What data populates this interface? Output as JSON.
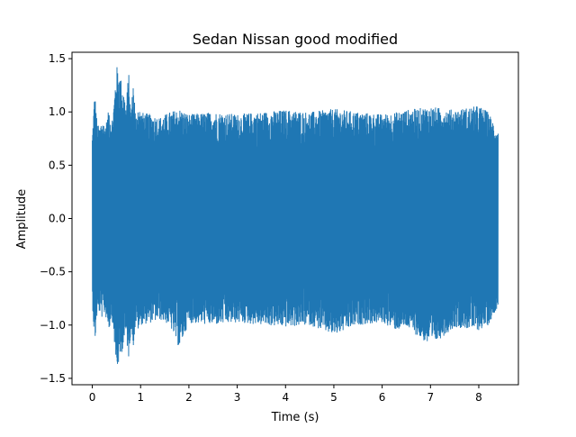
{
  "chart_data": {
    "type": "line",
    "title": "Sedan Nissan good modified",
    "xlabel": "Time (s)",
    "ylabel": "Amplitude",
    "xlim": [
      -0.42,
      8.82
    ],
    "ylim": [
      -1.56,
      1.56
    ],
    "xticks": [
      0,
      1,
      2,
      3,
      4,
      5,
      6,
      7,
      8
    ],
    "yticks": [
      -1.5,
      -1.0,
      -0.5,
      0.0,
      0.5,
      1.0,
      1.5
    ],
    "xtick_labels": [
      "0",
      "1",
      "2",
      "3",
      "4",
      "5",
      "6",
      "7",
      "8"
    ],
    "ytick_labels": [
      "−1.5",
      "−1.0",
      "−0.5",
      "0.0",
      "0.5",
      "1.0",
      "1.5"
    ],
    "grid": false,
    "line_color": "#1f77b4",
    "series": [
      {
        "x": [
          0.0,
          0.05,
          0.1,
          0.15,
          0.2,
          0.25,
          0.3,
          0.35,
          0.4,
          0.45,
          0.5,
          0.55,
          0.6,
          0.65,
          0.7,
          0.75,
          0.8,
          0.85,
          0.9,
          0.95,
          1.0,
          1.2,
          1.4,
          1.6,
          1.8,
          2.0,
          2.5,
          3.0,
          3.5,
          4.0,
          4.5,
          5.0,
          5.5,
          6.0,
          6.3,
          6.5,
          7.0,
          7.5,
          8.0,
          8.2,
          8.4
        ],
        "envelope_upper": [
          0.78,
          1.2,
          0.9,
          0.85,
          0.95,
          0.88,
          0.92,
          1.05,
          0.9,
          1.1,
          1.44,
          1.38,
          1.3,
          1.2,
          1.05,
          1.4,
          1.0,
          1.3,
          0.95,
          1.08,
          1.0,
          0.98,
          0.95,
          1.0,
          1.03,
          0.98,
          1.0,
          0.98,
          1.0,
          1.02,
          1.0,
          1.03,
          1.0,
          0.98,
          1.0,
          1.02,
          1.05,
          1.02,
          1.06,
          1.0,
          0.82
        ],
        "envelope_lower": [
          -0.78,
          -1.2,
          -0.9,
          -0.88,
          -0.93,
          -0.9,
          -0.95,
          -1.05,
          -0.9,
          -1.12,
          -1.44,
          -1.36,
          -1.28,
          -1.18,
          -1.1,
          -1.32,
          -1.05,
          -1.2,
          -0.98,
          -1.05,
          -1.0,
          -0.98,
          -0.95,
          -1.0,
          -1.22,
          -0.98,
          -1.0,
          -0.98,
          -1.0,
          -1.02,
          -1.0,
          -1.1,
          -1.0,
          -0.98,
          -1.05,
          -1.02,
          -1.2,
          -1.02,
          -1.05,
          -1.0,
          -0.82
        ]
      }
    ]
  }
}
